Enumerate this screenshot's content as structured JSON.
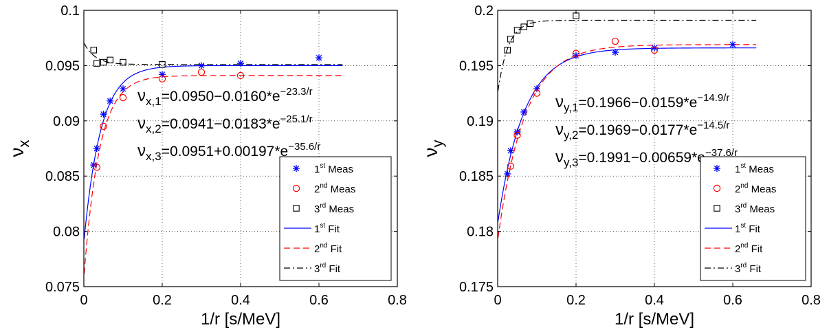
{
  "chart_data": [
    {
      "type": "scatter",
      "xlabel": "1/r [s/MeV]",
      "ylabel_base": "ν",
      "ylabel_sub": "x",
      "xlim": [
        0,
        0.8
      ],
      "ylim": [
        0.075,
        0.1
      ],
      "xticks": [
        0,
        0.2,
        0.4,
        0.6,
        0.8
      ],
      "xtick_labels": [
        "0",
        "0.2",
        "0.4",
        "0.6",
        "0.8"
      ],
      "yticks": [
        0.075,
        0.08,
        0.085,
        0.09,
        0.095,
        0.1
      ],
      "ytick_labels": [
        "0.075",
        "0.08",
        "0.085",
        "0.09",
        "0.095",
        "0.1"
      ],
      "grid": true,
      "legend_position": "bottom-right",
      "annotations": [
        {
          "base": "ν",
          "sub": "x,1",
          "text": "=0.0950−0.0160*e",
          "sup": "−23.3/r"
        },
        {
          "base": "ν",
          "sub": "x,2",
          "text": "=0.0941−0.0183*e",
          "sup": "−25.1/r"
        },
        {
          "base": "ν",
          "sub": "x,3",
          "text": "=0.0951+0.00197*e",
          "sup": "−35.6/r"
        }
      ],
      "series": [
        {
          "name": "Meas",
          "ordinal": "1",
          "suffix": "st",
          "kind": "marker",
          "marker": "star",
          "color": "#0000ff",
          "x": [
            0.025,
            0.033,
            0.05,
            0.067,
            0.1,
            0.2,
            0.3,
            0.4,
            0.6
          ],
          "y": [
            0.086,
            0.0875,
            0.0906,
            0.0918,
            0.0929,
            0.0942,
            0.095,
            0.0952,
            0.0957
          ]
        },
        {
          "name": "Meas",
          "ordinal": "2",
          "suffix": "nd",
          "kind": "marker",
          "marker": "circle",
          "color": "#ff0000",
          "x": [
            0.033,
            0.05,
            0.1,
            0.2,
            0.3,
            0.4
          ],
          "y": [
            0.0858,
            0.0895,
            0.0921,
            0.0938,
            0.0944,
            0.0941
          ]
        },
        {
          "name": "Meas",
          "ordinal": "3",
          "suffix": "rd",
          "kind": "marker",
          "marker": "square",
          "color": "#000000",
          "x": [
            0.025,
            0.033,
            0.05,
            0.067,
            0.1,
            0.2
          ],
          "y": [
            0.0964,
            0.0952,
            0.0953,
            0.0955,
            0.0953,
            0.0951
          ]
        },
        {
          "name": "Fit",
          "ordinal": "1",
          "suffix": "st",
          "kind": "line",
          "dash": "solid",
          "color": "#0000ff",
          "fit": {
            "a": 0.095,
            "b": -0.016,
            "c": 23.3,
            "xmax": 0.66
          }
        },
        {
          "name": "Fit",
          "ordinal": "2",
          "suffix": "nd",
          "kind": "line",
          "dash": "dashed",
          "color": "#ff0000",
          "fit": {
            "a": 0.0941,
            "b": -0.0183,
            "c": 25.1,
            "xmax": 0.66
          }
        },
        {
          "name": "Fit",
          "ordinal": "3",
          "suffix": "rd",
          "kind": "line",
          "dash": "dashdot",
          "color": "#000000",
          "fit": {
            "a": 0.0951,
            "b": 0.00197,
            "c": 35.6,
            "xmax": 0.66
          }
        }
      ]
    },
    {
      "type": "scatter",
      "xlabel": "1/r [s/MeV]",
      "ylabel_base": "ν",
      "ylabel_sub": "y",
      "xlim": [
        0,
        0.8
      ],
      "ylim": [
        0.175,
        0.2
      ],
      "xticks": [
        0,
        0.2,
        0.4,
        0.6,
        0.8
      ],
      "xtick_labels": [
        "0",
        "0.2",
        "0.4",
        "0.6",
        "0.8"
      ],
      "yticks": [
        0.175,
        0.18,
        0.185,
        0.19,
        0.195,
        0.2
      ],
      "ytick_labels": [
        "0.175",
        "0.18",
        "0.185",
        "0.19",
        "0.195",
        "0.2"
      ],
      "grid": true,
      "legend_position": "bottom-right",
      "annotations": [
        {
          "base": "ν",
          "sub": "y,1",
          "text": "=0.1966−0.0159*e",
          "sup": "−14.9/r"
        },
        {
          "base": "ν",
          "sub": "y,2",
          "text": "=0.1969−0.0177*e",
          "sup": "−14.5/r"
        },
        {
          "base": "ν",
          "sub": "y,3",
          "text": "=0.1991−0.00659*e",
          "sup": "−37.6/r"
        }
      ],
      "series": [
        {
          "name": "Meas",
          "ordinal": "1",
          "suffix": "st",
          "kind": "marker",
          "marker": "star",
          "color": "#0000ff",
          "x": [
            0.025,
            0.033,
            0.05,
            0.067,
            0.1,
            0.2,
            0.3,
            0.4,
            0.6
          ],
          "y": [
            0.1852,
            0.1873,
            0.189,
            0.1908,
            0.1929,
            0.1959,
            0.1962,
            0.1966,
            0.1969
          ]
        },
        {
          "name": "Meas",
          "ordinal": "2",
          "suffix": "nd",
          "kind": "marker",
          "marker": "circle",
          "color": "#ff0000",
          "x": [
            0.033,
            0.05,
            0.1,
            0.2,
            0.3,
            0.4
          ],
          "y": [
            0.1859,
            0.1887,
            0.1925,
            0.1961,
            0.1972,
            0.1964
          ]
        },
        {
          "name": "Meas",
          "ordinal": "3",
          "suffix": "rd",
          "kind": "marker",
          "marker": "square",
          "color": "#000000",
          "x": [
            0.025,
            0.033,
            0.05,
            0.067,
            0.083,
            0.2
          ],
          "y": [
            0.1964,
            0.1974,
            0.1982,
            0.1985,
            0.1988,
            0.1995
          ]
        },
        {
          "name": "Fit",
          "ordinal": "1",
          "suffix": "st",
          "kind": "line",
          "dash": "solid",
          "color": "#0000ff",
          "fit": {
            "a": 0.1966,
            "b": -0.0159,
            "c": 14.9,
            "xmax": 0.66
          }
        },
        {
          "name": "Fit",
          "ordinal": "2",
          "suffix": "nd",
          "kind": "line",
          "dash": "dashed",
          "color": "#ff0000",
          "fit": {
            "a": 0.1969,
            "b": -0.0177,
            "c": 14.5,
            "xmax": 0.66
          }
        },
        {
          "name": "Fit",
          "ordinal": "3",
          "suffix": "rd",
          "kind": "line",
          "dash": "dashdot",
          "color": "#000000",
          "fit": {
            "a": 0.1991,
            "b": -0.00659,
            "c": 37.6,
            "xmax": 0.66
          }
        }
      ]
    }
  ]
}
